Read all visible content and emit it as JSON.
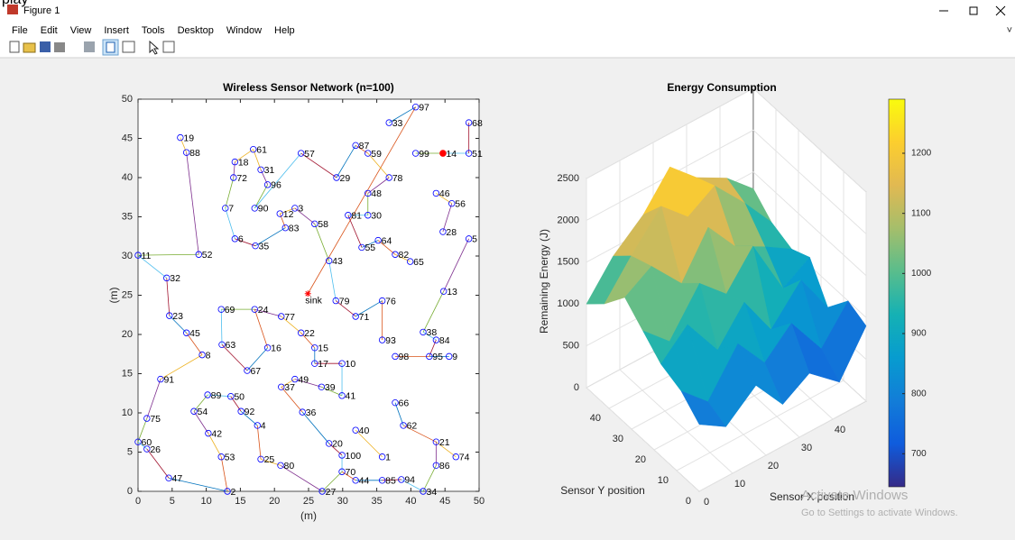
{
  "page_fragment": "play",
  "window": {
    "title": "Figure 1"
  },
  "menu": [
    "File",
    "Edit",
    "View",
    "Insert",
    "Tools",
    "Desktop",
    "Window",
    "Help"
  ],
  "watermark": {
    "line1": "Activate Windows",
    "line2": "Go to Settings to activate Windows."
  },
  "chart_data": [
    {
      "type": "network",
      "title": "Wireless Sensor Network (n=100)",
      "xlabel": "(m)",
      "ylabel": "(m)",
      "xlim": [
        0,
        50
      ],
      "ylim": [
        0,
        50
      ],
      "xticks": [
        0,
        5,
        10,
        15,
        20,
        25,
        30,
        35,
        40,
        45,
        50
      ],
      "yticks": [
        0,
        5,
        10,
        15,
        20,
        25,
        30,
        35,
        40,
        45,
        50
      ],
      "color": "#0000ff",
      "point_labels": [
        "97",
        "33",
        "68",
        "19",
        "88",
        "61",
        "87",
        "59",
        "57",
        "99",
        "51",
        "18",
        "31",
        "72",
        "29",
        "78",
        "96",
        "48",
        "46",
        "56",
        "7",
        "90",
        "12",
        "3",
        "81",
        "30",
        "58",
        "83",
        "28",
        "6",
        "35",
        "64",
        "55",
        "5",
        "52",
        "11",
        "82",
        "65",
        "43",
        "32",
        "79",
        "76",
        "13",
        "69",
        "24",
        "71",
        "77",
        "23",
        "38",
        "45",
        "22",
        "93",
        "84",
        "63",
        "16",
        "15",
        "8",
        "98",
        "95",
        "9",
        "17",
        "10",
        "67",
        "91",
        "49",
        "37",
        "39",
        "41",
        "89",
        "50",
        "66",
        "54",
        "92",
        "36",
        "75",
        "62",
        "4",
        "40",
        "42",
        "60",
        "21",
        "20",
        "26",
        "100",
        "74",
        "1",
        "53",
        "25",
        "80",
        "86",
        "70",
        "47",
        "44",
        "85",
        "94",
        "2",
        "27",
        "34"
      ],
      "x": [
        40.7,
        36.8,
        48.5,
        6.2,
        7.1,
        16.9,
        31.9,
        33.7,
        23.9,
        40.7,
        48.5,
        14.2,
        18.0,
        14.0,
        29.1,
        36.8,
        19.0,
        33.7,
        43.7,
        46.0,
        12.8,
        17.1,
        20.8,
        23.0,
        30.8,
        33.7,
        25.9,
        21.6,
        44.7,
        14.2,
        17.2,
        35.2,
        32.8,
        48.5,
        8.9,
        0,
        37.7,
        39.9,
        28.0,
        4.2,
        29.0,
        35.8,
        44.8,
        12.2,
        17.1,
        31.9,
        21.0,
        4.6,
        41.8,
        7.1,
        23.9,
        35.8,
        43.7,
        12.3,
        19.0,
        25.9,
        9.4,
        37.7,
        42.7,
        45.6,
        25.9,
        29.9,
        16.0,
        3.3,
        23.0,
        21.0,
        26.9,
        29.9,
        10.2,
        13.6,
        37.7,
        8.2,
        15.1,
        24.1,
        1.3,
        38.9,
        17.5,
        31.9,
        10.3,
        0,
        43.7,
        28.0,
        1.3,
        29.9,
        46.6,
        35.8,
        12.2,
        18.0,
        20.9,
        43.7,
        29.9,
        4.5,
        31.9,
        35.8,
        38.6,
        13.1,
        27.0,
        41.8
      ],
      "values": [
        49.0,
        47.0,
        47.0,
        45.1,
        43.2,
        43.6,
        44.1,
        43.1,
        43.1,
        43.1,
        43.1,
        42.0,
        41.0,
        40.0,
        40.0,
        40.0,
        39.1,
        38.0,
        38.0,
        36.7,
        36.1,
        36.1,
        35.4,
        36.1,
        35.2,
        35.2,
        34.1,
        33.6,
        33.1,
        32.2,
        31.3,
        32.0,
        31.1,
        32.2,
        30.2,
        30.1,
        30.2,
        29.3,
        29.4,
        27.2,
        24.3,
        24.3,
        25.5,
        23.2,
        23.2,
        22.3,
        22.3,
        22.4,
        20.3,
        20.2,
        20.2,
        19.3,
        19.3,
        18.7,
        18.3,
        18.3,
        17.4,
        17.2,
        17.2,
        17.2,
        16.3,
        16.3,
        15.4,
        14.3,
        14.3,
        13.3,
        13.3,
        12.2,
        12.3,
        12.1,
        11.3,
        10.2,
        10.2,
        10.1,
        9.3,
        8.4,
        8.4,
        7.8,
        7.4,
        6.3,
        6.3,
        6.1,
        5.4,
        4.6,
        4.4,
        4.4,
        4.4,
        4.1,
        3.3,
        3.3,
        2.5,
        1.7,
        1.4,
        1.4,
        1.5,
        0,
        0,
        0
      ],
      "special_points": [
        {
          "label": "14",
          "x": 44.7,
          "y": 43.1,
          "color": "#ff0000"
        }
      ],
      "sink": {
        "label": "sink",
        "x": 24.9,
        "y": 25.2,
        "color": "#ff0000"
      },
      "link_colors": [
        "#0072bd",
        "#d95319",
        "#edb120",
        "#7e2f8e",
        "#77ac30",
        "#4dbeee",
        "#a2142f"
      ],
      "links": [
        [
          "97",
          "33"
        ],
        [
          "97",
          "sink"
        ],
        [
          "19",
          "88"
        ],
        [
          "88",
          "52"
        ],
        [
          "52",
          "11"
        ],
        [
          "11",
          "32"
        ],
        [
          "32",
          "23"
        ],
        [
          "23",
          "45"
        ],
        [
          "45",
          "8"
        ],
        [
          "8",
          "91"
        ],
        [
          "91",
          "75"
        ],
        [
          "75",
          "60"
        ],
        [
          "60",
          "26"
        ],
        [
          "26",
          "47"
        ],
        [
          "47",
          "2"
        ],
        [
          "2",
          "53"
        ],
        [
          "53",
          "42"
        ],
        [
          "42",
          "54"
        ],
        [
          "54",
          "89"
        ],
        [
          "89",
          "50"
        ],
        [
          "50",
          "92"
        ],
        [
          "92",
          "4"
        ],
        [
          "4",
          "25"
        ],
        [
          "25",
          "80"
        ],
        [
          "80",
          "27"
        ],
        [
          "27",
          "70"
        ],
        [
          "70",
          "100"
        ],
        [
          "100",
          "20"
        ],
        [
          "20",
          "36"
        ],
        [
          "36",
          "37"
        ],
        [
          "37",
          "49"
        ],
        [
          "49",
          "39"
        ],
        [
          "39",
          "41"
        ],
        [
          "41",
          "10"
        ],
        [
          "10",
          "17"
        ],
        [
          "17",
          "15"
        ],
        [
          "15",
          "22"
        ],
        [
          "22",
          "77"
        ],
        [
          "77",
          "24"
        ],
        [
          "24",
          "69"
        ],
        [
          "69",
          "63"
        ],
        [
          "63",
          "67"
        ],
        [
          "67",
          "16"
        ],
        [
          "16",
          "24"
        ],
        [
          "61",
          "18"
        ],
        [
          "18",
          "72"
        ],
        [
          "72",
          "7"
        ],
        [
          "7",
          "6"
        ],
        [
          "6",
          "35"
        ],
        [
          "35",
          "83"
        ],
        [
          "83",
          "12"
        ],
        [
          "12",
          "3"
        ],
        [
          "3",
          "58"
        ],
        [
          "58",
          "43"
        ],
        [
          "43",
          "79"
        ],
        [
          "79",
          "71"
        ],
        [
          "71",
          "76"
        ],
        [
          "76",
          "93"
        ],
        [
          "61",
          "31"
        ],
        [
          "31",
          "96"
        ],
        [
          "96",
          "90"
        ],
        [
          "90",
          "57"
        ],
        [
          "57",
          "29"
        ],
        [
          "29",
          "87"
        ],
        [
          "87",
          "59"
        ],
        [
          "59",
          "78"
        ],
        [
          "78",
          "48"
        ],
        [
          "48",
          "30"
        ],
        [
          "30",
          "81"
        ],
        [
          "81",
          "55"
        ],
        [
          "55",
          "64"
        ],
        [
          "64",
          "82"
        ],
        [
          "82",
          "65"
        ],
        [
          "5",
          "13"
        ],
        [
          "13",
          "38"
        ],
        [
          "38",
          "84"
        ],
        [
          "84",
          "95"
        ],
        [
          "95",
          "9"
        ],
        [
          "95",
          "98"
        ],
        [
          "46",
          "56"
        ],
        [
          "56",
          "28"
        ],
        [
          "99",
          "14"
        ],
        [
          "14",
          "51"
        ],
        [
          "51",
          "68"
        ],
        [
          "66",
          "62"
        ],
        [
          "62",
          "21"
        ],
        [
          "21",
          "74"
        ],
        [
          "21",
          "86"
        ],
        [
          "86",
          "34"
        ],
        [
          "34",
          "94"
        ],
        [
          "94",
          "85"
        ],
        [
          "85",
          "44"
        ],
        [
          "44",
          "70"
        ],
        [
          "40",
          "1"
        ]
      ]
    },
    {
      "type": "surface",
      "title": "Energy Consumption",
      "xlabel": "Sensor X position",
      "ylabel": "Sensor Y position",
      "zlabel": "Remaining Energy (J)",
      "xlim": [
        0,
        50
      ],
      "ylim": [
        0,
        50
      ],
      "zlim": [
        0,
        2500
      ],
      "xticks": [
        0,
        10,
        20,
        30,
        40
      ],
      "yticks": [
        0,
        10,
        20,
        30,
        40
      ],
      "zticks": [
        0,
        500,
        1000,
        1500,
        2000,
        2500
      ],
      "x": [
        0,
        8,
        17,
        25,
        33,
        42,
        50
      ],
      "y": [
        0,
        8,
        17,
        25,
        33,
        42,
        50
      ],
      "z": [
        [
          800,
          600,
          900,
          500,
          700,
          400,
          900
        ],
        [
          1000,
          700,
          1200,
          800,
          1100,
          600,
          1000
        ],
        [
          1100,
          1400,
          900,
          1300,
          800,
          1200,
          700
        ],
        [
          1300,
          1000,
          1500,
          1200,
          1600,
          900,
          1100
        ],
        [
          1500,
          1700,
          1300,
          1800,
          1400,
          1200,
          1000
        ],
        [
          1200,
          1600,
          2000,
          1700,
          1900,
          1500,
          1100
        ],
        [
          1000,
          1400,
          1700,
          2100,
          1800,
          1600,
          1300
        ]
      ],
      "colorbar": {
        "clim": [
          645,
          1290
        ],
        "ticks": [
          700,
          800,
          900,
          1000,
          1100,
          1200
        ]
      }
    }
  ]
}
